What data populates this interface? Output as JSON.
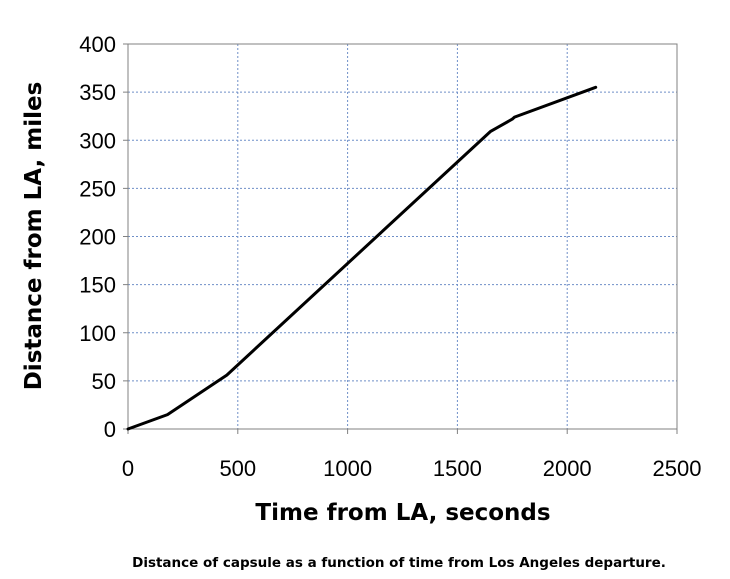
{
  "chart_data": {
    "type": "line",
    "title": "",
    "xlabel": "Time from LA, seconds",
    "ylabel": "Distance from LA, miles",
    "xlim": [
      0,
      2500
    ],
    "ylim": [
      0,
      400
    ],
    "x_ticks": [
      "0",
      "500",
      "1000",
      "1500",
      "2000",
      "2500"
    ],
    "y_ticks": [
      "0",
      "50",
      "100",
      "150",
      "200",
      "250",
      "300",
      "350",
      "400"
    ],
    "grid": true,
    "legend": "none",
    "series": [
      {
        "color": "#000000",
        "x": [
          0,
          180,
          450,
          1650,
          1665,
          1750,
          1760,
          2130
        ],
        "y": [
          0,
          15,
          56,
          309,
          311,
          322,
          324,
          355
        ]
      }
    ]
  },
  "caption": "Distance of capsule as a function of time from Los Angeles departure.",
  "colors": {
    "gridline": "#6f8fc8",
    "axis": "#808080",
    "series": "#000000"
  }
}
